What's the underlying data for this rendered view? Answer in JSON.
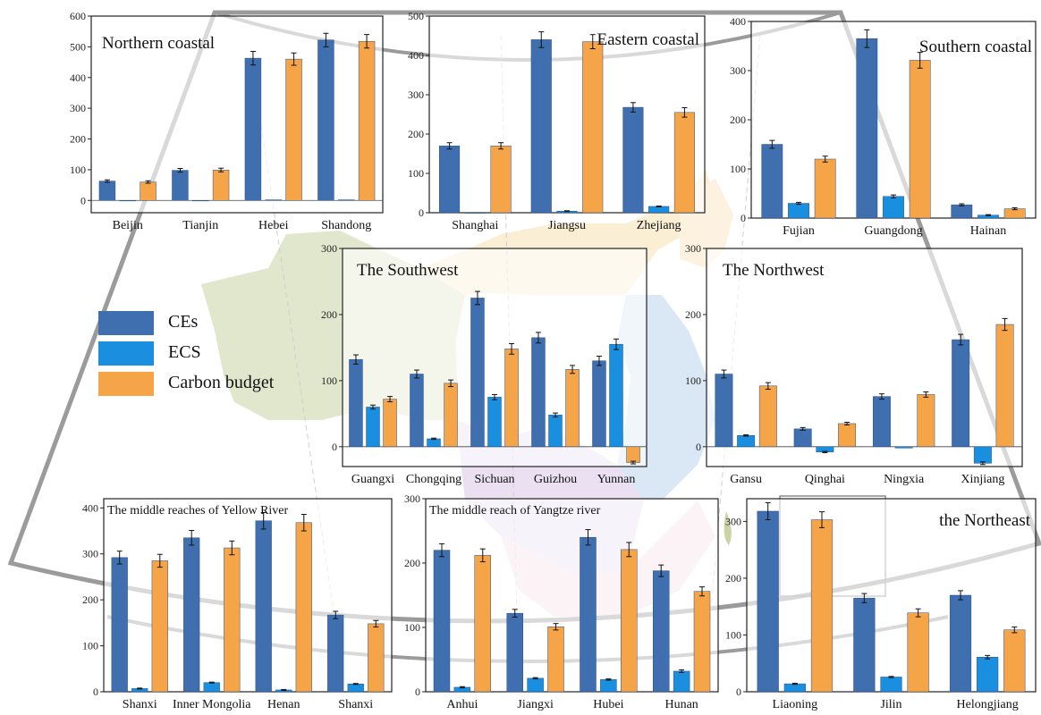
{
  "colors": {
    "CEs": "#3f6fae",
    "ECS": "#1a8fe0",
    "Carbon budget": "#f5a547"
  },
  "legend": {
    "items": [
      "CEs",
      "ECS",
      "Carbon budget"
    ]
  },
  "chart_data": [
    {
      "type": "bar",
      "title": "Northern coastal",
      "categories": [
        "Beijin",
        "Tianjin",
        "Hebei",
        "Shandong"
      ],
      "ylim": [
        -40,
        600
      ],
      "yticks": [
        0,
        100,
        200,
        300,
        400,
        500,
        600
      ],
      "series": [
        {
          "name": "CEs",
          "values": [
            63,
            98,
            463,
            522
          ],
          "errors": [
            4,
            6,
            22,
            22
          ]
        },
        {
          "name": "ECS",
          "values": [
            0,
            0,
            2,
            2
          ],
          "errors": [
            0,
            0,
            0,
            0
          ]
        },
        {
          "name": "Carbon budget",
          "values": [
            60,
            99,
            460,
            518
          ],
          "errors": [
            4,
            6,
            20,
            22
          ]
        }
      ]
    },
    {
      "type": "bar",
      "title": "Eastern coastal",
      "categories": [
        "Shanghai",
        "Jiangsu",
        "Zhejiang"
      ],
      "ylim": [
        0,
        500
      ],
      "yticks": [
        0,
        100,
        200,
        300,
        400,
        500
      ],
      "series": [
        {
          "name": "CEs",
          "values": [
            170,
            440,
            268
          ],
          "errors": [
            8,
            20,
            12
          ]
        },
        {
          "name": "ECS",
          "values": [
            0,
            4,
            16
          ],
          "errors": [
            0,
            1,
            1
          ]
        },
        {
          "name": "Carbon budget",
          "values": [
            170,
            435,
            255
          ],
          "errors": [
            8,
            18,
            12
          ]
        }
      ]
    },
    {
      "type": "bar",
      "title": "Southern coastal",
      "categories": [
        "Fujian",
        "Guangdong",
        "Hainan"
      ],
      "ylim": [
        0,
        400
      ],
      "yticks": [
        0,
        100,
        200,
        300,
        400
      ],
      "series": [
        {
          "name": "CEs",
          "values": [
            150,
            365,
            27
          ],
          "errors": [
            8,
            18,
            2
          ]
        },
        {
          "name": "ECS",
          "values": [
            30,
            44,
            6
          ],
          "errors": [
            2,
            3,
            1
          ]
        },
        {
          "name": "Carbon budget",
          "values": [
            120,
            321,
            19
          ],
          "errors": [
            6,
            16,
            2
          ]
        }
      ]
    },
    {
      "type": "bar",
      "title": "The Southwest",
      "categories": [
        "Guangxi",
        "Chongqing",
        "Sichuan",
        "Guizhou",
        "Yunnan"
      ],
      "ylim": [
        -30,
        300
      ],
      "yticks": [
        0,
        100,
        200,
        300
      ],
      "series": [
        {
          "name": "CEs",
          "values": [
            132,
            110,
            225,
            165,
            130
          ],
          "errors": [
            7,
            6,
            10,
            8,
            7
          ]
        },
        {
          "name": "ECS",
          "values": [
            60,
            12,
            75,
            48,
            155
          ],
          "errors": [
            3,
            1,
            4,
            3,
            8
          ]
        },
        {
          "name": "Carbon budget",
          "values": [
            72,
            96,
            148,
            117,
            -24
          ],
          "errors": [
            4,
            5,
            8,
            6,
            2
          ]
        }
      ]
    },
    {
      "type": "bar",
      "title": "The Northwest",
      "categories": [
        "Gansu",
        "Qinghai",
        "Ningxia",
        "Xinjiang"
      ],
      "ylim": [
        -30,
        300
      ],
      "yticks": [
        0,
        100,
        200,
        300
      ],
      "series": [
        {
          "name": "CEs",
          "values": [
            110,
            27,
            76,
            162
          ],
          "errors": [
            6,
            2,
            4,
            8
          ]
        },
        {
          "name": "ECS",
          "values": [
            17,
            -8,
            -2,
            -25
          ],
          "errors": [
            1,
            1,
            0,
            2
          ]
        },
        {
          "name": "Carbon budget",
          "values": [
            92,
            35,
            79,
            185
          ],
          "errors": [
            5,
            2,
            4,
            9
          ]
        }
      ]
    },
    {
      "type": "bar",
      "title": "The middle reaches of Yellow River",
      "categories": [
        "Shanxi",
        "Inner Mongolia",
        "Henan",
        "Shanxi"
      ],
      "ylim": [
        0,
        420
      ],
      "yticks": [
        0,
        100,
        200,
        300,
        400
      ],
      "series": [
        {
          "name": "CEs",
          "values": [
            292,
            335,
            372,
            167
          ],
          "errors": [
            14,
            16,
            18,
            8
          ]
        },
        {
          "name": "ECS",
          "values": [
            7,
            20,
            4,
            17
          ],
          "errors": [
            1,
            1,
            1,
            1
          ]
        },
        {
          "name": "Carbon budget",
          "values": [
            285,
            313,
            368,
            148
          ],
          "errors": [
            14,
            15,
            18,
            7
          ]
        }
      ]
    },
    {
      "type": "bar",
      "title": "The middle reach of Yangtze river",
      "categories": [
        "Anhui",
        "Jiangxi",
        "Hubei",
        "Hunan"
      ],
      "ylim": [
        0,
        300
      ],
      "yticks": [
        0,
        100,
        200,
        300
      ],
      "series": [
        {
          "name": "CEs",
          "values": [
            220,
            122,
            240,
            188
          ],
          "errors": [
            10,
            6,
            12,
            9
          ]
        },
        {
          "name": "ECS",
          "values": [
            7,
            21,
            19,
            32
          ],
          "errors": [
            1,
            1,
            1,
            2
          ]
        },
        {
          "name": "Carbon budget",
          "values": [
            212,
            101,
            221,
            156
          ],
          "errors": [
            10,
            5,
            11,
            7
          ]
        }
      ]
    },
    {
      "type": "bar",
      "title": "the Northeast",
      "categories": [
        "Liaoning",
        "Jilin",
        "Helongjiang"
      ],
      "ylim": [
        0,
        340
      ],
      "yticks": [
        0,
        100,
        200,
        300
      ],
      "series": [
        {
          "name": "CEs",
          "values": [
            318,
            165,
            170
          ],
          "errors": [
            15,
            8,
            8
          ]
        },
        {
          "name": "ECS",
          "values": [
            14,
            26,
            61
          ],
          "errors": [
            1,
            1,
            3
          ]
        },
        {
          "name": "Carbon budget",
          "values": [
            303,
            139,
            109
          ],
          "errors": [
            14,
            7,
            5
          ]
        }
      ]
    }
  ]
}
